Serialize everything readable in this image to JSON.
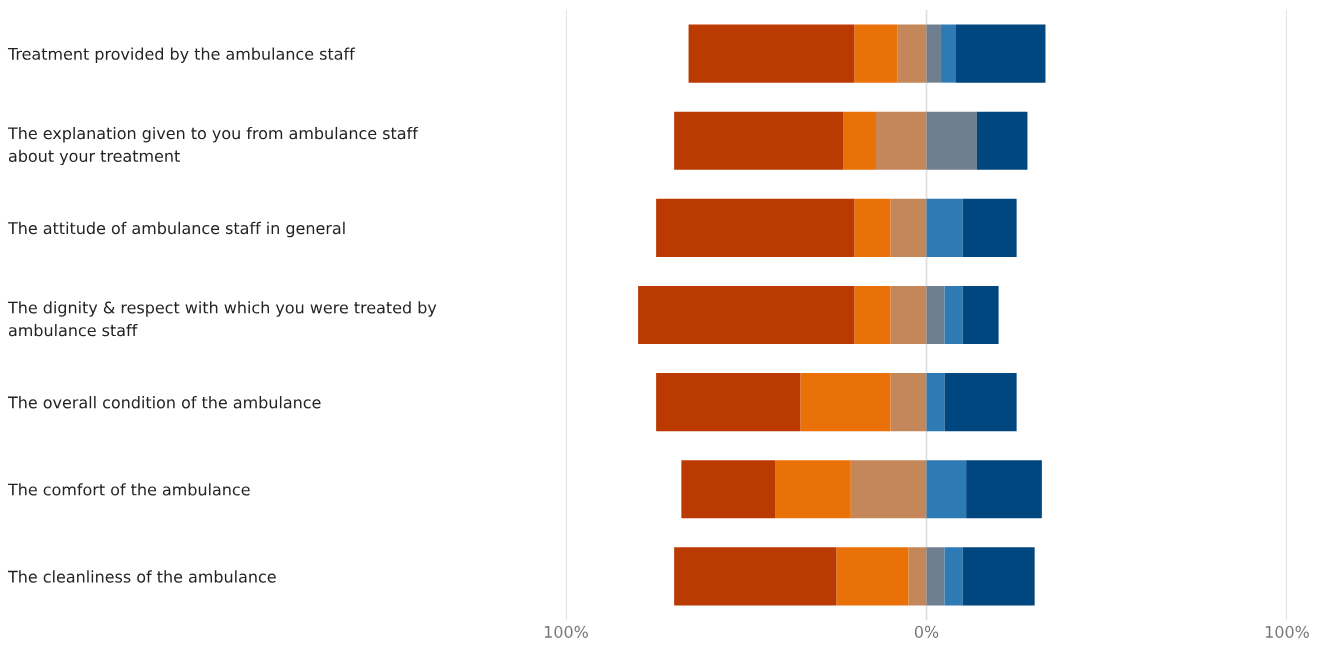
{
  "chart_data": {
    "type": "bar",
    "orientation": "horizontal",
    "stacked": true,
    "categories": [
      "Treatment provided by the ambulance staff",
      "The explanation given to you from ambulance staff\nabout your treatment",
      "The attitude of ambulance staff in general",
      "The dignity & respect with which you were treated by\nambulance staff",
      "The overall condition of the ambulance",
      "The comfort of the ambulance",
      "The cleanliness of the ambulance"
    ],
    "series": [
      {
        "color": "#c4875a",
        "values": [
          -8,
          -14,
          -10,
          -10,
          -10,
          -21,
          -5
        ]
      },
      {
        "color": "#ea7008",
        "values": [
          -12,
          -9,
          -10,
          -10,
          -25,
          -21,
          -20
        ]
      },
      {
        "color": "#bb3a02",
        "values": [
          -46,
          -47,
          -55,
          -60,
          -40,
          -26,
          -45
        ]
      },
      {
        "color": "#6f7f8f",
        "values": [
          4,
          14,
          null,
          5,
          null,
          null,
          5
        ]
      },
      {
        "color": "#2e7ab5",
        "values": [
          4,
          null,
          10,
          5,
          5,
          11,
          5
        ]
      },
      {
        "color": "#00477f",
        "values": [
          25,
          14,
          15,
          10,
          20,
          21,
          20
        ]
      }
    ],
    "xlim": [
      -100,
      100
    ],
    "xticks": [
      {
        "value": -100,
        "label": "100%"
      },
      {
        "value": 0,
        "label": "0%"
      },
      {
        "value": 100,
        "label": "100%"
      }
    ],
    "grid": "x"
  }
}
